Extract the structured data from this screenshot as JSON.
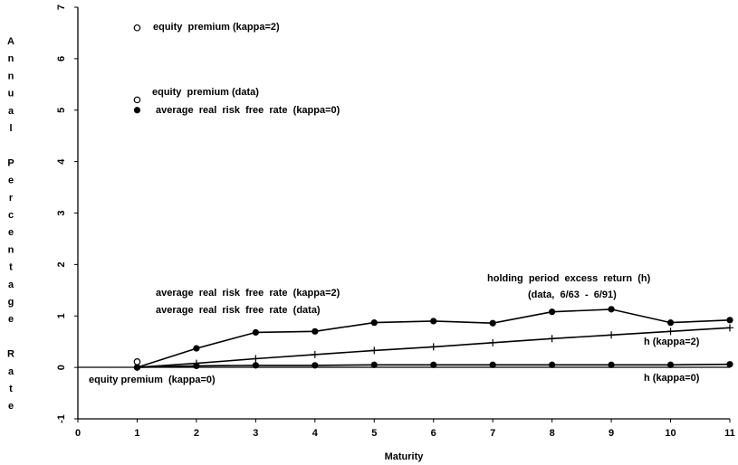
{
  "chart_data": {
    "type": "line",
    "xlabel": "Maturity",
    "ylabel_letters": [
      "A",
      "n",
      "n",
      "u",
      "a",
      "l",
      "",
      "P",
      "e",
      "r",
      "c",
      "e",
      "n",
      "t",
      "a",
      "g",
      "e",
      "",
      "R",
      "a",
      "t",
      "e"
    ],
    "xlim": [
      0,
      11
    ],
    "ylim": [
      -1,
      7
    ],
    "xticks": [
      "0",
      "1",
      "2",
      "3",
      "4",
      "5",
      "6",
      "7",
      "8",
      "9",
      "10",
      "11"
    ],
    "yticks": [
      "-1",
      "0",
      "1",
      "2",
      "3",
      "4",
      "5",
      "6",
      "7"
    ],
    "series": [
      {
        "name": "holding period excess return (h) (data, 6/63 - 6/91)",
        "marker": "filled-circle",
        "x": [
          1,
          2,
          3,
          4,
          5,
          6,
          7,
          8,
          9,
          10,
          11
        ],
        "y": [
          0.0,
          0.37,
          0.68,
          0.7,
          0.87,
          0.9,
          0.86,
          1.08,
          1.13,
          0.87,
          0.92
        ]
      },
      {
        "name": "h (kappa=2)",
        "marker": "plus",
        "x": [
          1,
          2,
          3,
          4,
          5,
          6,
          7,
          8,
          9,
          10,
          11
        ],
        "y": [
          0.0,
          0.08,
          0.17,
          0.25,
          0.33,
          0.4,
          0.48,
          0.56,
          0.63,
          0.7,
          0.77
        ]
      },
      {
        "name": "h (kappa=0)",
        "marker": "filled-circle",
        "x": [
          1,
          2,
          3,
          4,
          5,
          6,
          7,
          8,
          9,
          10,
          11
        ],
        "y": [
          0.0,
          0.03,
          0.04,
          0.04,
          0.05,
          0.05,
          0.05,
          0.05,
          0.05,
          0.05,
          0.06
        ]
      }
    ],
    "points": [
      {
        "name": "equity premium (kappa=2)",
        "x": 1,
        "y": 6.6,
        "marker": "open-circle"
      },
      {
        "name": "equity premium (data)",
        "x": 1,
        "y": 5.2,
        "marker": "open-circle"
      },
      {
        "name": "average real risk free rate (kappa=0)",
        "x": 1,
        "y": 5.0,
        "marker": "filled-circle"
      },
      {
        "name": "average real risk free rate (kappa=2)",
        "x": 1,
        "y": 0.04,
        "marker": "open-circle"
      },
      {
        "name": "average real risk free rate (data)",
        "x": 1,
        "y": 0.0,
        "marker": "star"
      },
      {
        "name": "equity premium (kappa=0)",
        "x": 1,
        "y": 0.0,
        "marker": "filled-circle"
      }
    ],
    "annotations": {
      "eq_k2": "equity  premium (kappa=2)",
      "eq_data": "equity  premium (data)",
      "rf_k0": "average  real  risk  free  rate  (kappa=0)",
      "rf_k2": "average  real  risk  free  rate  (kappa=2)",
      "rf_data": "average  real  risk  free  rate  (data)",
      "eq_k0": "equity premium  (kappa=0)",
      "h_line1": "holding  period  excess  return  (h)",
      "h_line2": "(data,  6/63  -  6/91)",
      "h_k2": "h (kappa=2)",
      "h_k0": "h (kappa=0)"
    }
  }
}
